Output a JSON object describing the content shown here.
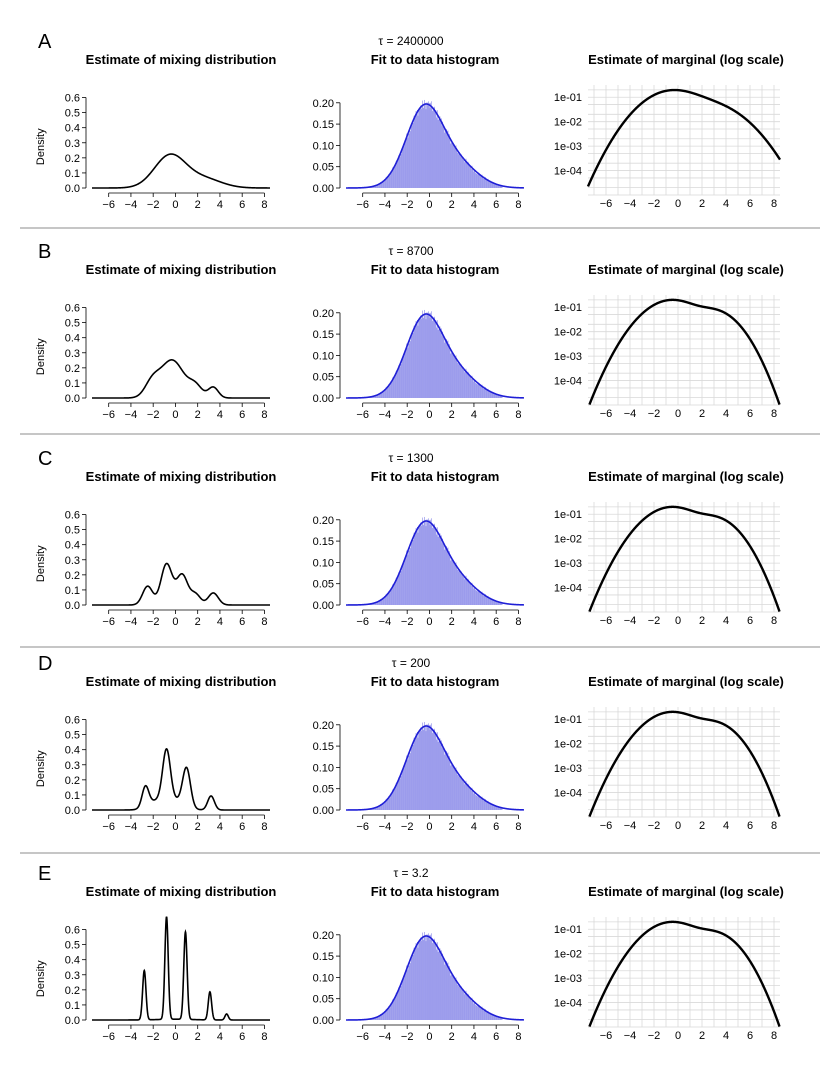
{
  "figure": {
    "headers": {
      "left": "Estimate of mixing distribution",
      "middle": "Fit to data histogram",
      "right": "Estimate of marginal (log scale)"
    },
    "ylabel_left": "Density",
    "colors": {
      "histogram_fill": "#8080e6",
      "fit_line": "#1f1fd6",
      "line": "#000000",
      "grid": "#d9d9d9",
      "separator": "#b3b3b3"
    },
    "panels": [
      {
        "letter": "A",
        "tau": "τ = 2400000"
      },
      {
        "letter": "B",
        "tau": "τ = 8700"
      },
      {
        "letter": "C",
        "tau": "τ = 1300"
      },
      {
        "letter": "D",
        "tau": "τ = 200"
      },
      {
        "letter": "E",
        "tau": "τ = 3.2"
      }
    ]
  },
  "chart_data": [
    {
      "type": "line",
      "title": "Estimate of mixing distribution",
      "xlabel": "",
      "ylabel": "Density",
      "xlim": [
        -7.5,
        8.5
      ],
      "ylim": [
        0,
        0.65
      ],
      "xticks": [
        -6,
        -4,
        -2,
        0,
        2,
        4,
        6,
        8
      ],
      "yticks": [
        0.0,
        0.1,
        0.2,
        0.3,
        0.4,
        0.5,
        0.6
      ],
      "series": [
        {
          "name": "A",
          "components": [
            [
              -0.5,
              1.4,
              0.75
            ],
            [
              2.5,
              1.6,
              0.25
            ]
          ]
        },
        {
          "name": "B",
          "components": [
            [
              -2.1,
              0.65,
              0.15
            ],
            [
              -0.3,
              1.05,
              0.66
            ],
            [
              1.8,
              0.6,
              0.11
            ],
            [
              3.4,
              0.45,
              0.08
            ]
          ]
        },
        {
          "name": "C",
          "components": [
            [
              -2.5,
              0.45,
              0.14
            ],
            [
              -0.8,
              0.5,
              0.34
            ],
            [
              0.6,
              0.5,
              0.25
            ],
            [
              1.8,
              0.45,
              0.08
            ],
            [
              3.4,
              0.45,
              0.09
            ]
          ]
        },
        {
          "name": "D",
          "components": [
            [
              -2.7,
              0.3,
              0.1
            ],
            [
              -0.8,
              0.35,
              0.3
            ],
            [
              1.0,
              0.35,
              0.22
            ],
            [
              3.2,
              0.3,
              0.07
            ],
            [
              -1.7,
              0.8,
              0.12
            ],
            [
              0.1,
              0.8,
              0.12
            ]
          ]
        },
        {
          "name": "E",
          "components": [
            [
              -2.8,
              0.15,
              0.123
            ],
            [
              -0.8,
              0.15,
              0.256
            ],
            [
              0.9,
              0.15,
              0.218
            ],
            [
              3.1,
              0.15,
              0.07
            ],
            [
              4.6,
              0.15,
              0.015
            ],
            [
              0.0,
              1.5,
              0.02
            ]
          ]
        }
      ]
    },
    {
      "type": "bar",
      "title": "Fit to data histogram",
      "xlabel": "",
      "ylabel": "",
      "xlim": [
        -7.5,
        8.5
      ],
      "ylim": [
        0,
        0.23
      ],
      "xticks": [
        -6,
        -4,
        -2,
        0,
        2,
        4,
        6,
        8
      ],
      "yticks": [
        0.0,
        0.05,
        0.1,
        0.15,
        0.2
      ],
      "fit_line_components": [
        [
          -0.5,
          1.65,
          0.75
        ],
        [
          2.5,
          1.85,
          0.25
        ]
      ],
      "note": "Histogram of the data with fitted density overlaid (blue line); identical in all panels A–E."
    },
    {
      "type": "line",
      "title": "Estimate of marginal (log scale)",
      "xlabel": "",
      "ylabel": "",
      "xlim": [
        -7.5,
        8.5
      ],
      "ylim_log10": [
        -5,
        -0.5
      ],
      "xticks": [
        -6,
        -4,
        -2,
        0,
        2,
        4,
        6,
        8
      ],
      "yticks": [
        "1e-01",
        "1e-02",
        "1e-03",
        "1e-04"
      ],
      "series": [
        {
          "name": "A",
          "components": [
            [
              -0.5,
              1.65,
              0.75
            ],
            [
              2.5,
              1.85,
              0.25
            ]
          ]
        },
        {
          "name": "B",
          "components": [
            [
              -0.5,
              1.55,
              0.77
            ],
            [
              3.0,
              1.3,
              0.23
            ]
          ]
        },
        {
          "name": "C",
          "components": [
            [
              -0.5,
              1.55,
              0.77
            ],
            [
              3.0,
              1.3,
              0.23
            ]
          ]
        },
        {
          "name": "D",
          "components": [
            [
              -0.5,
              1.55,
              0.77
            ],
            [
              3.0,
              1.3,
              0.23
            ]
          ]
        },
        {
          "name": "E",
          "components": [
            [
              -0.5,
              1.55,
              0.77
            ],
            [
              3.0,
              1.3,
              0.23
            ]
          ]
        }
      ]
    }
  ]
}
